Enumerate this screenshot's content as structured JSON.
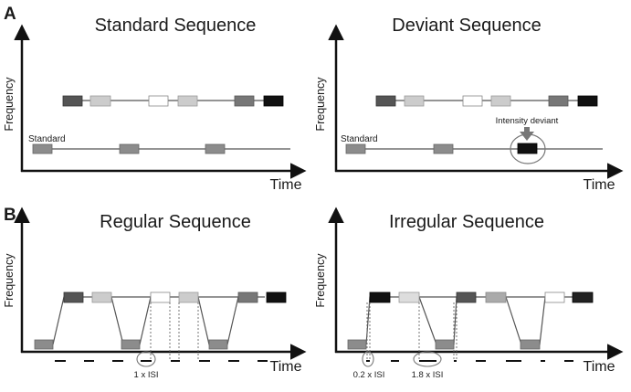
{
  "panels": {
    "a": {
      "letter": "A",
      "standard": {
        "title": "Standard Sequence",
        "ylabel": "Frequency",
        "xlabel": "Time",
        "standard_label": "Standard"
      },
      "deviant": {
        "title": "Deviant Sequence",
        "ylabel": "Frequency",
        "xlabel": "Time",
        "standard_label": "Standard",
        "deviant_label": "Intensity deviant"
      }
    },
    "b": {
      "letter": "B",
      "regular": {
        "title": "Regular Sequence",
        "ylabel": "Frequency",
        "xlabel": "Time",
        "isi_label": "1 x ISI"
      },
      "irregular": {
        "title": "Irregular Sequence",
        "ylabel": "Frequency",
        "xlabel": "Time",
        "isi_short_label": "0.2 x ISI",
        "isi_long_label": "1.8 x ISI"
      }
    }
  },
  "colors": {
    "axis": "#111111",
    "line": "#555555",
    "tone_black": "#111111",
    "tone_dark": "#555555",
    "tone_mid": "#8c8c8c",
    "tone_light": "#cccccc",
    "tone_white": "#ffffff",
    "ellipse": "#777777"
  }
}
